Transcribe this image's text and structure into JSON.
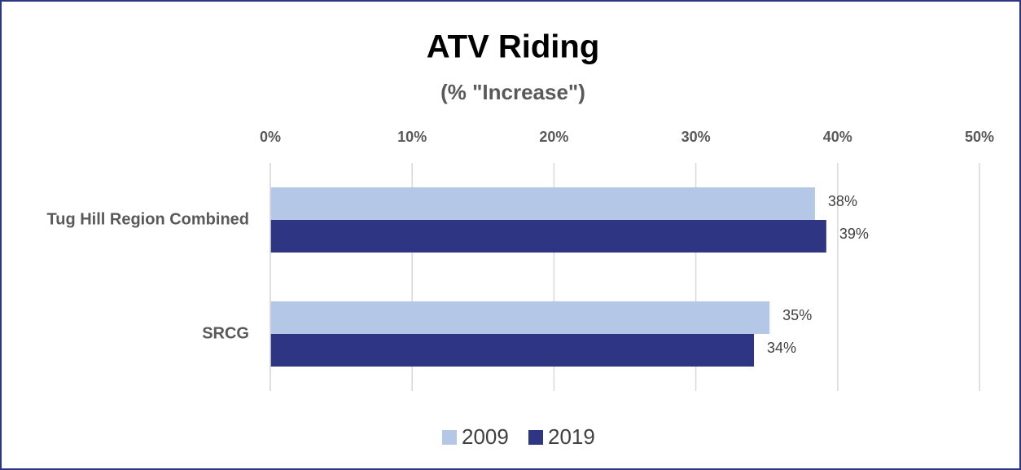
{
  "chart_data": {
    "type": "bar",
    "orientation": "horizontal",
    "title": "ATV Riding",
    "subtitle": "(% \"Increase\")",
    "categories": [
      "Tug Hill Region Combined",
      "SRCG"
    ],
    "series": [
      {
        "name": "2009",
        "color": "#b4c7e7",
        "values": [
          38.4,
          35.2
        ],
        "value_labels": [
          "38%",
          "35%"
        ]
      },
      {
        "name": "2019",
        "color": "#2e3583",
        "values": [
          39.2,
          34.1
        ],
        "value_labels": [
          "39%",
          "34%"
        ]
      }
    ],
    "xlim": [
      0,
      50
    ],
    "xticks": [
      {
        "value": 0,
        "label": "0%"
      },
      {
        "value": 10,
        "label": "10%"
      },
      {
        "value": 20,
        "label": "20%"
      },
      {
        "value": 30,
        "label": "30%"
      },
      {
        "value": 40,
        "label": "40%"
      },
      {
        "value": 50,
        "label": "50%"
      }
    ],
    "grid": true,
    "legend": "bottom"
  }
}
